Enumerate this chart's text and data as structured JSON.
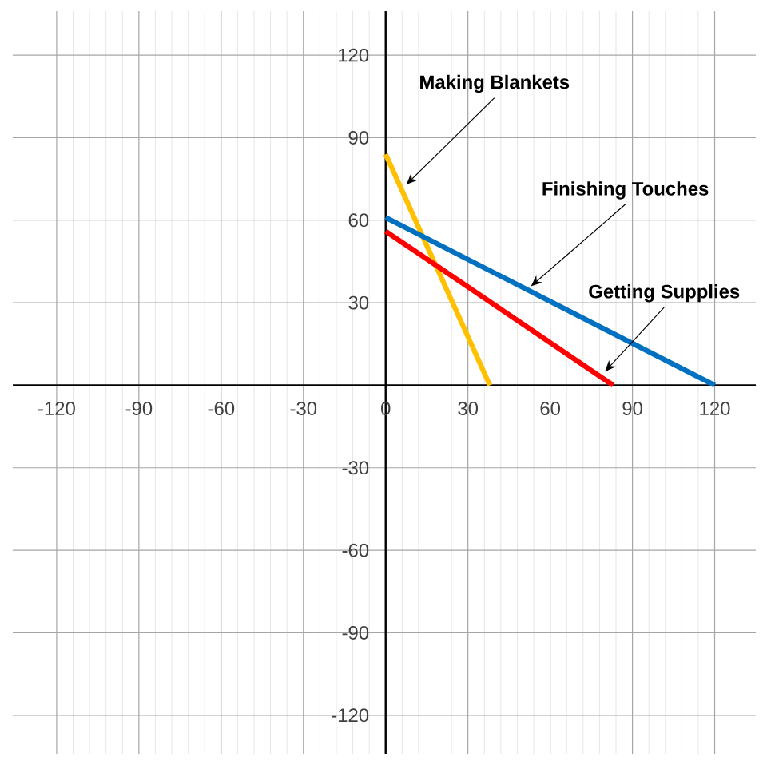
{
  "chart_data": {
    "type": "line",
    "xlim": [
      -136,
      135
    ],
    "ylim": [
      -134,
      136
    ],
    "xticks": [
      -120,
      -90,
      -60,
      -30,
      0,
      30,
      60,
      90,
      120
    ],
    "yticks": [
      -120,
      -90,
      -60,
      -30,
      30,
      60,
      90,
      120
    ],
    "grid": true,
    "marker": "none",
    "line_style": "solid",
    "series": [
      {
        "color": "#ffc000",
        "x": [
          0,
          38
        ],
        "values": [
          84,
          0
        ]
      },
      {
        "color": "#ff0000",
        "x": [
          0,
          83
        ],
        "values": [
          56,
          0
        ]
      },
      {
        "color": "#0070c0",
        "x": [
          0,
          120
        ],
        "values": [
          61,
          0
        ]
      }
    ],
    "annotations": [
      {
        "text": "Making Blankets",
        "x": 7.6,
        "y": 73
      },
      {
        "text": "Finishing Touches",
        "x": 53,
        "y": 36
      },
      {
        "text": "Getting Supplies",
        "x": 80,
        "y": 5
      }
    ]
  }
}
